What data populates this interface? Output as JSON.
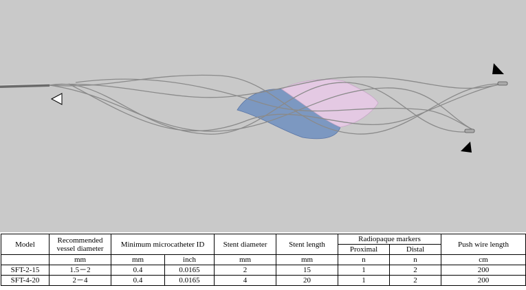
{
  "table": {
    "header_row1": [
      "Model",
      "Recommended vessel diameter",
      "Minimum microcatheter ID",
      "Stent diameter",
      "Stent length",
      "Radiopaque markers",
      "Push wire length"
    ],
    "header_row2": [
      "Proximal",
      "Distal"
    ],
    "units": [
      "mm",
      "mm",
      "inch",
      "mm",
      "mm",
      "n",
      "n",
      "cm"
    ],
    "rows": [
      [
        "SFT-2-15",
        "1.5－2",
        "0.4",
        "0.0165",
        "2",
        "15",
        "1",
        "2",
        "200"
      ],
      [
        "SFT-4-20",
        "2－4",
        "0.4",
        "0.0165",
        "4",
        "20",
        "1",
        "2",
        "200"
      ]
    ]
  }
}
